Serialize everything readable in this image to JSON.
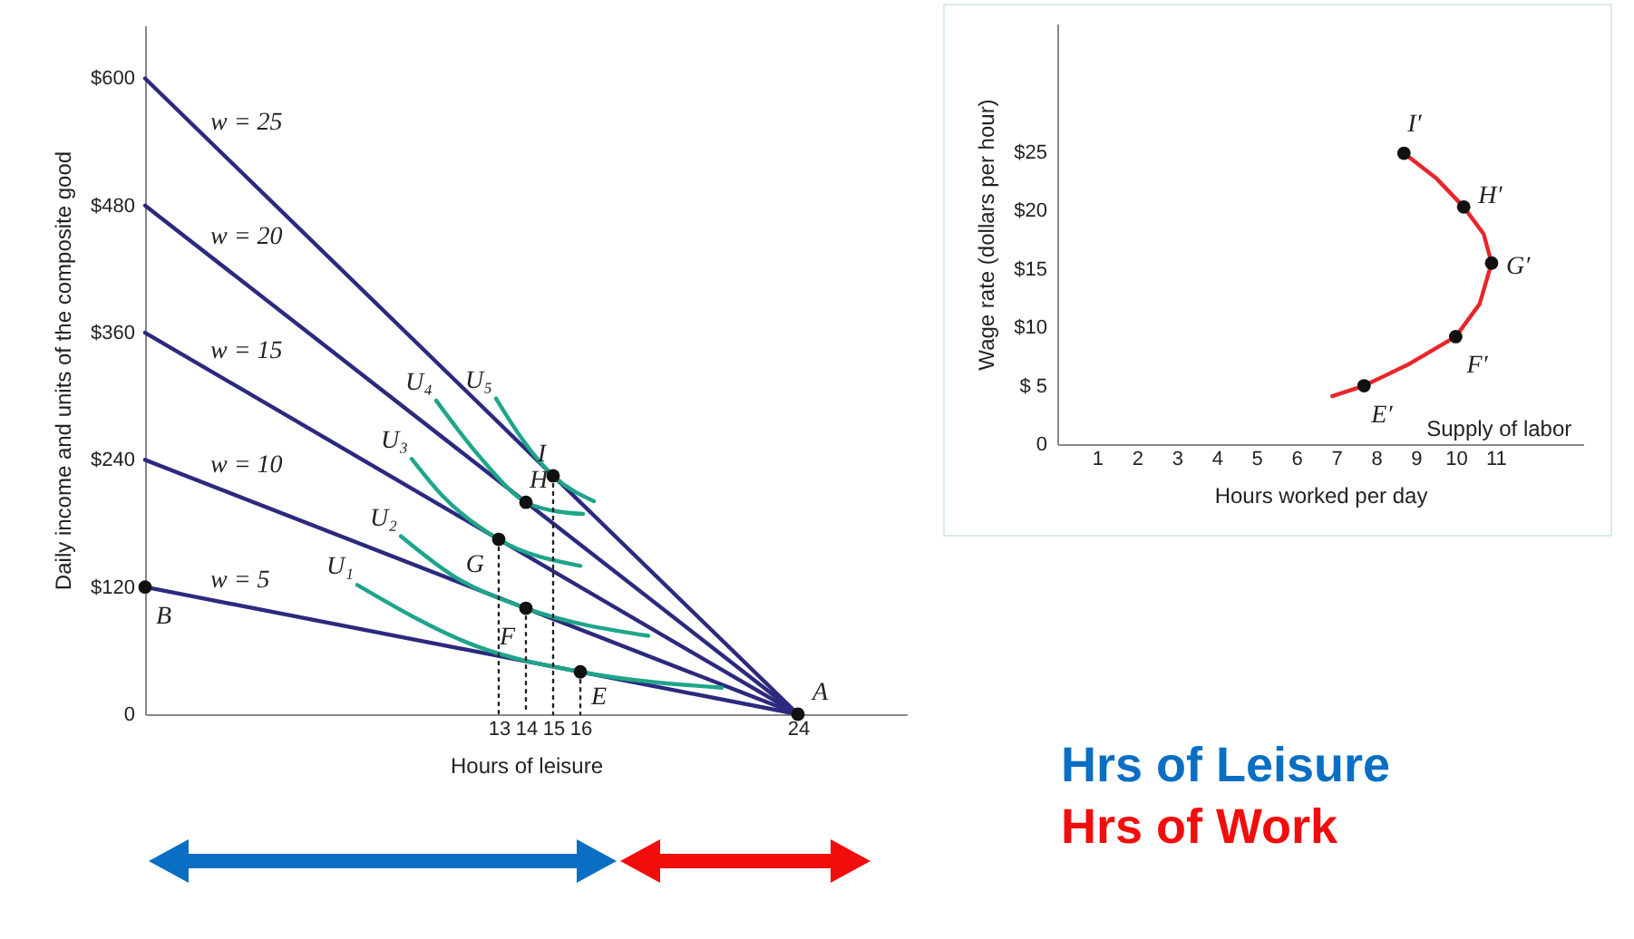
{
  "chart_data": [
    {
      "type": "line",
      "xlabel": "Hours of leisure",
      "ylabel": "Daily income and units of the composite good",
      "xlim": [
        0,
        28
      ],
      "ylim": [
        0,
        650
      ],
      "xticks": [
        13,
        14,
        15,
        16,
        24
      ],
      "yticks": [
        {
          "value": 0,
          "label": "0"
        },
        {
          "value": 120,
          "label": "$120"
        },
        {
          "value": 240,
          "label": "$240"
        },
        {
          "value": 360,
          "label": "$360"
        },
        {
          "value": 480,
          "label": "$480"
        },
        {
          "value": 600,
          "label": "$600"
        }
      ],
      "grid": false,
      "series": [
        {
          "name": "w = 5",
          "color": "#2b2a7e",
          "x": [
            0,
            24
          ],
          "values": [
            120,
            0
          ]
        },
        {
          "name": "w = 10",
          "color": "#2b2a7e",
          "x": [
            0,
            24
          ],
          "values": [
            240,
            0
          ]
        },
        {
          "name": "w = 15",
          "color": "#2b2a7e",
          "x": [
            0,
            24
          ],
          "values": [
            360,
            0
          ]
        },
        {
          "name": "w = 20",
          "color": "#2b2a7e",
          "x": [
            0,
            24
          ],
          "values": [
            480,
            0
          ]
        },
        {
          "name": "w = 25",
          "color": "#2b2a7e",
          "x": [
            0,
            24
          ],
          "values": [
            600,
            0
          ]
        },
        {
          "name": "U₁",
          "color": "#1ea58a",
          "x": [
            7.8,
            12.2,
            16,
            21.2
          ],
          "values": [
            122,
            64,
            40,
            25
          ]
        },
        {
          "name": "U₂",
          "color": "#1ea58a",
          "x": [
            9.4,
            11.3,
            14,
            18.5
          ],
          "values": [
            168,
            131,
            100,
            74
          ]
        },
        {
          "name": "U₃",
          "color": "#1ea58a",
          "x": [
            9.8,
            10.9,
            13,
            16
          ],
          "values": [
            241,
            207,
            165,
            140
          ]
        },
        {
          "name": "U₄",
          "color": "#1ea58a",
          "x": [
            10.7,
            12.3,
            14,
            15,
            16.1
          ],
          "values": [
            296,
            243,
            200,
            192,
            189
          ]
        },
        {
          "name": "U₅",
          "color": "#1ea58a",
          "x": [
            12.9,
            13.8,
            15,
            16.5
          ],
          "values": [
            298,
            262,
            225,
            201
          ]
        },
        {
          "color": "#222222",
          "line_style": "dotted",
          "x": [
            13,
            13
          ],
          "values": [
            165,
            0
          ]
        },
        {
          "color": "#222222",
          "line_style": "dotted",
          "x": [
            14,
            14
          ],
          "values": [
            100,
            0
          ]
        },
        {
          "color": "#222222",
          "line_style": "dotted",
          "x": [
            15,
            15
          ],
          "values": [
            225,
            0
          ]
        },
        {
          "color": "#222222",
          "line_style": "dotted",
          "x": [
            16,
            16
          ],
          "values": [
            40,
            0
          ]
        },
        {
          "type": "scatter",
          "marker": "circle",
          "color": "#111111",
          "x": [
            0,
            16,
            14,
            13,
            14,
            15,
            24
          ],
          "values": [
            120,
            40,
            100,
            165,
            200,
            225,
            0
          ]
        }
      ],
      "annotations": [
        {
          "text": "B",
          "x": 0,
          "y": 120
        },
        {
          "text": "E",
          "x": 16,
          "y": 40
        },
        {
          "text": "F",
          "x": 14,
          "y": 100
        },
        {
          "text": "G",
          "x": 13,
          "y": 165
        },
        {
          "text": "H",
          "x": 14,
          "y": 200
        },
        {
          "text": "I",
          "x": 15,
          "y": 225
        },
        {
          "text": "A",
          "x": 24,
          "y": 0
        },
        "Hrs of Leisure",
        "Hrs of Work"
      ]
    },
    {
      "type": "line",
      "xlabel": "Hours worked per day",
      "ylabel": "Wage rate (dollars per hour)",
      "xlim": [
        0,
        13.2
      ],
      "ylim": [
        0,
        36
      ],
      "xticks": [
        1,
        2,
        3,
        4,
        5,
        6,
        7,
        8,
        9,
        10,
        11
      ],
      "yticks": [
        {
          "value": 0,
          "label": "0"
        },
        {
          "value": 5,
          "label": "$ 5"
        },
        {
          "value": 10,
          "label": "$10"
        },
        {
          "value": 15,
          "label": "$15"
        },
        {
          "value": 20,
          "label": "$20"
        },
        {
          "value": 25,
          "label": "$25"
        }
      ],
      "grid": false,
      "series": [
        {
          "name": "Supply of labor",
          "color": "#e8262a",
          "x": [
            6.9,
            7.7,
            8.8,
            10,
            10.6,
            10.9,
            10.7,
            10.2,
            9.5,
            8.7
          ],
          "values": [
            4.1,
            5,
            6.8,
            9.2,
            12,
            15.5,
            18,
            20.3,
            22.8,
            24.9
          ]
        },
        {
          "type": "scatter",
          "marker": "circle",
          "color": "#111111",
          "x": [
            7.7,
            10,
            10.9,
            10.2,
            8.7
          ],
          "values": [
            5,
            9.2,
            15.5,
            20.3,
            24.9
          ]
        }
      ],
      "annotations": [
        {
          "text": "E′",
          "x": 7.7,
          "y": 5
        },
        {
          "text": "F′",
          "x": 10,
          "y": 9.2
        },
        {
          "text": "G′",
          "x": 10.9,
          "y": 15.5
        },
        {
          "text": "H′",
          "x": 10.2,
          "y": 20.3
        },
        {
          "text": "I′",
          "x": 8.7,
          "y": 24.9
        }
      ]
    }
  ]
}
